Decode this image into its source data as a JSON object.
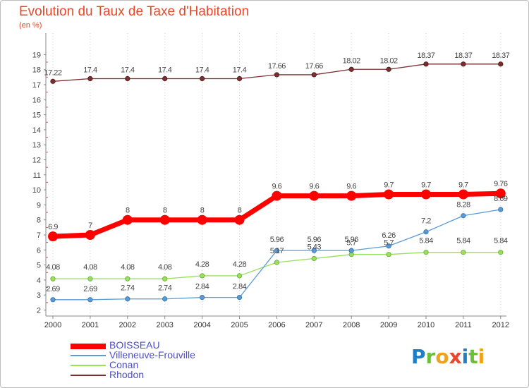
{
  "title": "Evolution du Taux de Taxe d'Habitation",
  "unit": "(en %)",
  "chart_data": {
    "type": "line",
    "title": "Evolution du Taux de Taxe d'Habitation",
    "ylabel": "(en %)",
    "x": [
      "2000",
      "2001",
      "2002",
      "2003",
      "2004",
      "2005",
      "2006",
      "2007",
      "2008",
      "2009",
      "2010",
      "2011",
      "2012"
    ],
    "ylim": [
      2,
      19
    ],
    "yticks": [
      2,
      3,
      4,
      5,
      6,
      7,
      8,
      9,
      10,
      11,
      12,
      13,
      14,
      15,
      16,
      17,
      18,
      19
    ],
    "grid": "vertical-dotted",
    "legend_position": "bottom-left",
    "series": [
      {
        "name": "BOISSEAU",
        "color": "#ff0000",
        "labels": [
          "6.9",
          "7",
          "8",
          "8",
          "8",
          "8",
          "9.6",
          "9.6",
          "9.6",
          "9.7",
          "9.7",
          "9.7",
          "9.76"
        ],
        "values": [
          6.9,
          7,
          8,
          8,
          8,
          8,
          9.6,
          9.6,
          9.6,
          9.7,
          9.7,
          9.7,
          9.76
        ]
      },
      {
        "name": "Villeneuve-Frouville",
        "color": "#5b9bd5",
        "labels": [
          "2.69",
          "2.69",
          "2.74",
          "2.74",
          "2.84",
          "2.84",
          "5.96",
          "5.96",
          "5.96",
          "6.26",
          "7.2",
          "8.28",
          "8.69"
        ],
        "values": [
          2.69,
          2.69,
          2.74,
          2.74,
          2.84,
          2.84,
          5.96,
          5.96,
          5.96,
          6.26,
          7.2,
          8.28,
          8.69
        ]
      },
      {
        "name": "Conan",
        "color": "#99e05a",
        "labels": [
          "4.08",
          "4.08",
          "4.08",
          "4.08",
          "4.28",
          "4.28",
          "5.17",
          "5.43",
          "5.7",
          "5.7",
          "5.84",
          "5.84",
          "5.84"
        ],
        "values": [
          4.08,
          4.08,
          4.08,
          4.08,
          4.28,
          4.28,
          5.17,
          5.43,
          5.7,
          5.7,
          5.84,
          5.84,
          5.84
        ]
      },
      {
        "name": "Rhodon",
        "color": "#7b2f2f",
        "labels": [
          "17.22",
          "17.4",
          "17.4",
          "17.4",
          "17.4",
          "17.4",
          "17.66",
          "17.66",
          "18.02",
          "18.02",
          "18.37",
          "18.37",
          "18.37"
        ],
        "values": [
          17.22,
          17.4,
          17.4,
          17.4,
          17.4,
          17.4,
          17.66,
          17.66,
          18.02,
          18.02,
          18.37,
          18.37,
          18.37
        ]
      }
    ]
  },
  "legend": {
    "items": [
      {
        "label": "BOISSEAU",
        "color": "#ff0000",
        "swatch": "thick"
      },
      {
        "label": "Villeneuve-Frouville",
        "color": "#5b9bd5",
        "swatch": "thin"
      },
      {
        "label": "Conan",
        "color": "#99e05a",
        "swatch": "thin"
      },
      {
        "label": "Rhodon",
        "color": "#7b2f2f",
        "swatch": "thin"
      }
    ]
  },
  "logo": {
    "text": "Proxiti",
    "letters": [
      {
        "ch": "P",
        "color": "#1e7fc8"
      },
      {
        "ch": "r",
        "color": "#6cbf3a"
      },
      {
        "ch": "o",
        "color": "#f0a21e"
      },
      {
        "ch": "x",
        "color": "#e8482a"
      },
      {
        "ch": "i",
        "color": "#1e7fc8"
      },
      {
        "ch": "t",
        "color": "#6cbf3a"
      },
      {
        "ch": "i",
        "color": "#f0a21e"
      }
    ]
  }
}
